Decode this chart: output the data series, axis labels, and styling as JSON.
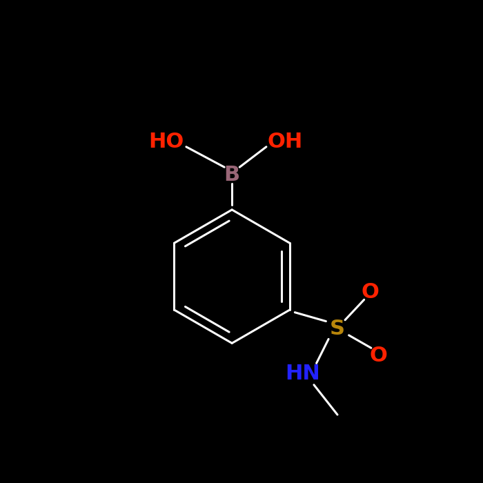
{
  "background_color": "#000000",
  "bond_color": "#ffffff",
  "bond_width": 2.2,
  "label_HO": {
    "text": "HO",
    "color": "#ff2200",
    "fontsize": 22
  },
  "label_OH": {
    "text": "OH",
    "color": "#ff2200",
    "fontsize": 22
  },
  "label_B": {
    "text": "B",
    "color": "#996677",
    "fontsize": 22
  },
  "label_S": {
    "text": "S",
    "color": "#b8860b",
    "fontsize": 22
  },
  "label_HN": {
    "text": "HN",
    "color": "#2222ff",
    "fontsize": 22
  },
  "label_O1": {
    "text": "O",
    "color": "#ff2200",
    "fontsize": 22
  },
  "label_O2": {
    "text": "O",
    "color": "#ff2200",
    "fontsize": 22
  },
  "fig_width": 7.0,
  "fig_height": 7.0,
  "xlim": [
    -3.8,
    3.8
  ],
  "ylim": [
    -3.8,
    3.8
  ]
}
